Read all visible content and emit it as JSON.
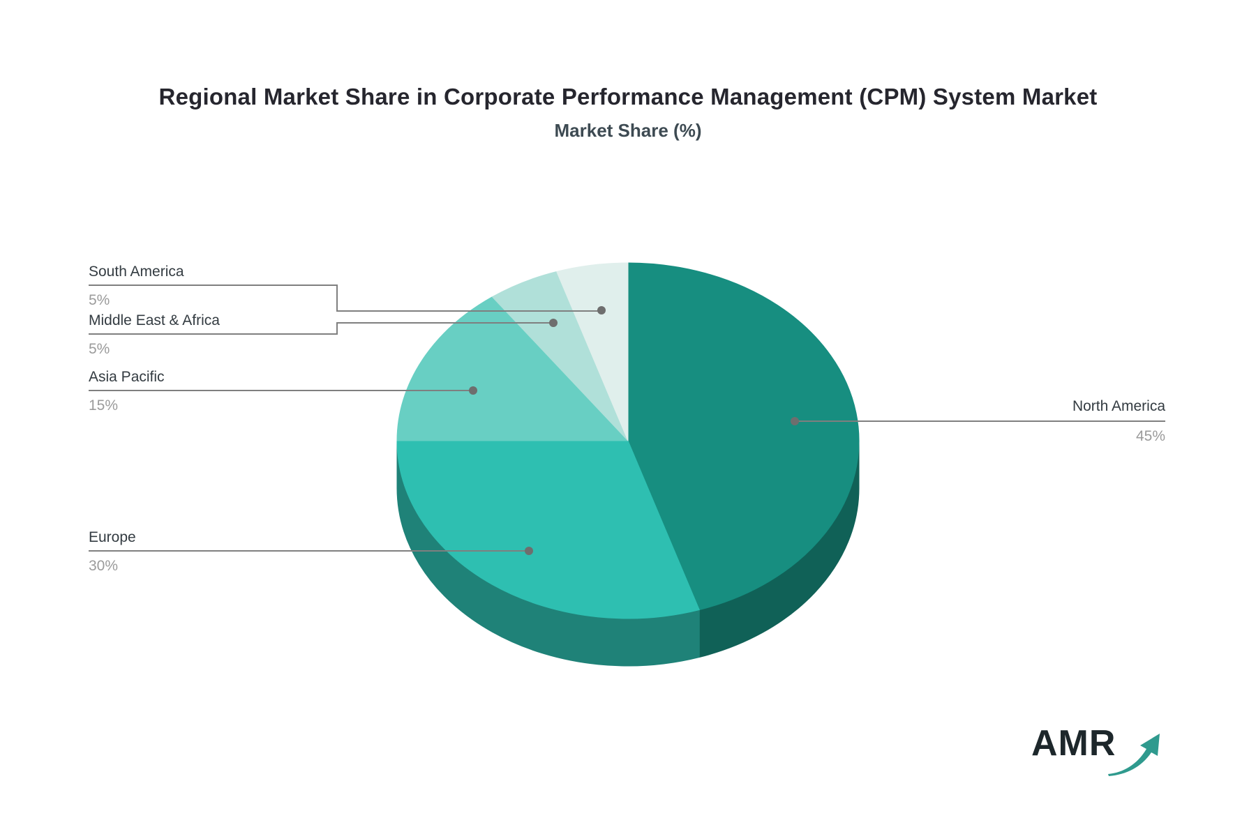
{
  "header": {
    "title": "Regional Market Share in Corporate Performance Management (CPM) System Market",
    "subtitle": "Market Share (%)"
  },
  "chart_data": {
    "type": "pie",
    "style": "3d",
    "title": "Regional Market Share in Corporate Performance Management (CPM) System Market",
    "subtitle": "Market Share (%)",
    "unit": "%",
    "start_angle_deg": 0,
    "direction": "clockwise",
    "slices": [
      {
        "label": "North America",
        "value": 45,
        "value_label": "45%",
        "color": "#178e80",
        "label_side": "right"
      },
      {
        "label": "Europe",
        "value": 30,
        "value_label": "30%",
        "color": "#2ebfb1",
        "label_side": "left"
      },
      {
        "label": "Asia Pacific",
        "value": 15,
        "value_label": "15%",
        "color": "#68cfc3",
        "label_side": "left"
      },
      {
        "label": "Middle East & Africa",
        "value": 5,
        "value_label": "5%",
        "color": "#b0e0d9",
        "label_side": "left"
      },
      {
        "label": "South America",
        "value": 5,
        "value_label": "5%",
        "color": "#e0efec",
        "label_side": "left"
      }
    ],
    "legend": "none",
    "leader_line_color": "#7f7f7f",
    "leader_dot_color": "#6e6e6e",
    "label_color": "#333b41",
    "value_color": "#9b9b9b"
  },
  "logo": {
    "text": "AMR",
    "text_color": "#1d272b",
    "arrow_color": "#2f9a8e"
  }
}
